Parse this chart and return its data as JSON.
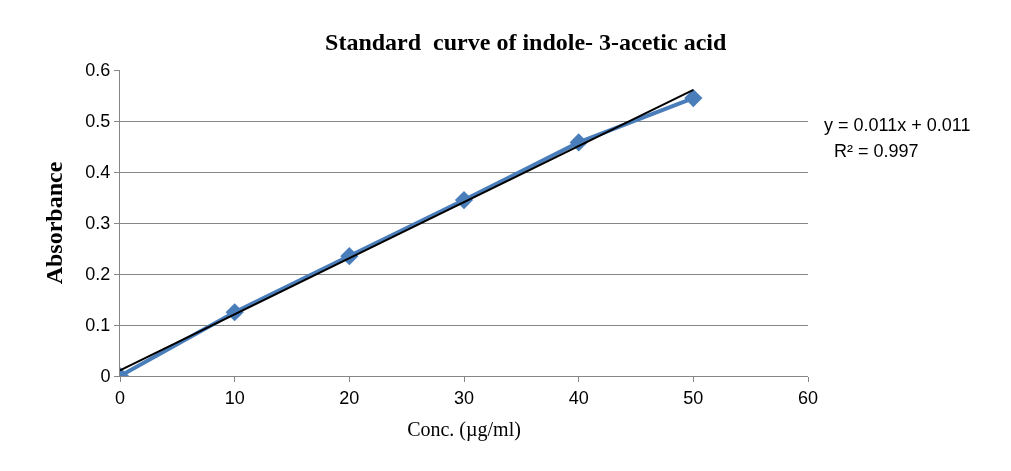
{
  "chart_data": {
    "type": "line",
    "title": "Standard  curve of indole- 3-acetic acid",
    "xlabel": "Conc. (µg/ml)",
    "ylabel": "Absorbance",
    "x": [
      0,
      10,
      20,
      30,
      40,
      50
    ],
    "series": [
      {
        "color": "#4a7ebb",
        "values": [
          0,
          0.125,
          0.235,
          0.345,
          0.458,
          0.545
        ],
        "marker": "diamond"
      },
      {
        "color": "#000000",
        "x": [
          0,
          50
        ],
        "values": [
          0.011,
          0.561
        ],
        "marker": "none"
      }
    ],
    "xlim": [
      0,
      60
    ],
    "xticks": [
      0,
      10,
      20,
      30,
      40,
      50,
      60
    ],
    "ylim": [
      0,
      0.6
    ],
    "yticks": [
      0,
      0.1,
      0.2,
      0.3,
      0.4,
      0.5,
      0.6
    ],
    "grid": "y",
    "annotations": [
      "y = 0.011x + 0.011",
      "R² = 0.997"
    ]
  }
}
